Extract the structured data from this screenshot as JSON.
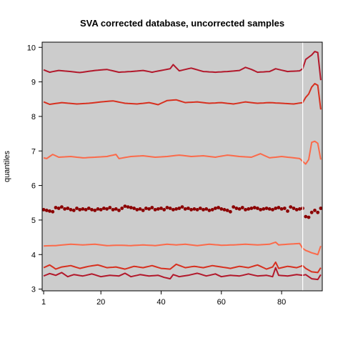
{
  "chart_data": {
    "type": "line",
    "title": "SVA corrected database, uncorrected samples",
    "xlabel": "",
    "ylabel": "quantiles",
    "xlim": [
      0.5,
      93.5
    ],
    "ylim": [
      2.95,
      10.15
    ],
    "x_ticks": [
      1,
      20,
      40,
      60,
      80
    ],
    "y_ticks": [
      3,
      4,
      5,
      6,
      7,
      8,
      9,
      10
    ],
    "background_color": "#cccccc",
    "grid": false,
    "divider_x": 87,
    "n_samples": 93,
    "series": [
      {
        "color": "#b2182b",
        "style": "line",
        "anchors": [
          [
            1,
            9.35
          ],
          [
            3,
            9.28
          ],
          [
            6,
            9.33
          ],
          [
            10,
            9.3
          ],
          [
            13,
            9.27
          ],
          [
            18,
            9.33
          ],
          [
            22,
            9.36
          ],
          [
            26,
            9.28
          ],
          [
            30,
            9.3
          ],
          [
            34,
            9.33
          ],
          [
            37,
            9.28
          ],
          [
            40,
            9.33
          ],
          [
            43,
            9.38
          ],
          [
            44,
            9.5
          ],
          [
            46,
            9.32
          ],
          [
            50,
            9.4
          ],
          [
            54,
            9.3
          ],
          [
            58,
            9.28
          ],
          [
            62,
            9.3
          ],
          [
            66,
            9.33
          ],
          [
            68,
            9.42
          ],
          [
            70,
            9.36
          ],
          [
            72,
            9.28
          ],
          [
            76,
            9.3
          ],
          [
            78,
            9.38
          ],
          [
            82,
            9.3
          ],
          [
            86,
            9.32
          ],
          [
            87,
            9.38
          ],
          [
            88,
            9.65
          ],
          [
            90,
            9.78
          ],
          [
            91,
            9.88
          ],
          [
            92,
            9.85
          ],
          [
            93,
            9.05
          ]
        ]
      },
      {
        "color": "#d7301f",
        "style": "line",
        "anchors": [
          [
            1,
            8.42
          ],
          [
            3,
            8.35
          ],
          [
            7,
            8.4
          ],
          [
            12,
            8.36
          ],
          [
            16,
            8.38
          ],
          [
            20,
            8.42
          ],
          [
            24,
            8.45
          ],
          [
            28,
            8.38
          ],
          [
            32,
            8.36
          ],
          [
            36,
            8.4
          ],
          [
            39,
            8.34
          ],
          [
            42,
            8.46
          ],
          [
            45,
            8.48
          ],
          [
            48,
            8.4
          ],
          [
            52,
            8.42
          ],
          [
            56,
            8.38
          ],
          [
            60,
            8.4
          ],
          [
            64,
            8.36
          ],
          [
            68,
            8.42
          ],
          [
            72,
            8.38
          ],
          [
            76,
            8.4
          ],
          [
            80,
            8.38
          ],
          [
            84,
            8.36
          ],
          [
            87,
            8.4
          ],
          [
            88,
            8.55
          ],
          [
            89,
            8.65
          ],
          [
            90,
            8.85
          ],
          [
            91,
            8.95
          ],
          [
            92,
            8.9
          ],
          [
            93,
            8.2
          ]
        ]
      },
      {
        "color": "#fb6a4a",
        "style": "line",
        "anchors": [
          [
            1,
            6.8
          ],
          [
            2,
            6.78
          ],
          [
            4,
            6.9
          ],
          [
            6,
            6.82
          ],
          [
            10,
            6.84
          ],
          [
            14,
            6.8
          ],
          [
            18,
            6.82
          ],
          [
            22,
            6.84
          ],
          [
            25,
            6.9
          ],
          [
            26,
            6.78
          ],
          [
            30,
            6.84
          ],
          [
            34,
            6.86
          ],
          [
            38,
            6.82
          ],
          [
            42,
            6.84
          ],
          [
            46,
            6.88
          ],
          [
            50,
            6.84
          ],
          [
            54,
            6.86
          ],
          [
            58,
            6.82
          ],
          [
            62,
            6.88
          ],
          [
            66,
            6.84
          ],
          [
            70,
            6.82
          ],
          [
            73,
            6.92
          ],
          [
            76,
            6.8
          ],
          [
            80,
            6.84
          ],
          [
            84,
            6.8
          ],
          [
            86,
            6.78
          ],
          [
            87,
            6.7
          ],
          [
            88,
            6.62
          ],
          [
            89,
            6.75
          ],
          [
            90,
            7.25
          ],
          [
            91,
            7.28
          ],
          [
            92,
            7.22
          ],
          [
            93,
            6.75
          ]
        ]
      },
      {
        "color": "#8b0000",
        "style": "points",
        "anchors": [
          [
            1,
            5.3
          ],
          [
            2,
            5.28
          ],
          [
            3,
            5.26
          ],
          [
            4,
            5.24
          ],
          [
            5,
            5.36
          ],
          [
            6,
            5.34
          ],
          [
            7,
            5.38
          ],
          [
            8,
            5.32
          ],
          [
            9,
            5.34
          ],
          [
            10,
            5.3
          ],
          [
            11,
            5.28
          ],
          [
            12,
            5.34
          ],
          [
            13,
            5.3
          ],
          [
            14,
            5.32
          ],
          [
            15,
            5.3
          ],
          [
            16,
            5.34
          ],
          [
            17,
            5.3
          ],
          [
            18,
            5.28
          ],
          [
            19,
            5.32
          ],
          [
            20,
            5.3
          ],
          [
            21,
            5.34
          ],
          [
            22,
            5.32
          ],
          [
            23,
            5.36
          ],
          [
            24,
            5.3
          ],
          [
            25,
            5.32
          ],
          [
            26,
            5.28
          ],
          [
            27,
            5.34
          ],
          [
            28,
            5.4
          ],
          [
            29,
            5.38
          ],
          [
            30,
            5.36
          ],
          [
            31,
            5.34
          ],
          [
            32,
            5.3
          ],
          [
            33,
            5.32
          ],
          [
            34,
            5.28
          ],
          [
            35,
            5.34
          ],
          [
            36,
            5.32
          ],
          [
            37,
            5.36
          ],
          [
            38,
            5.3
          ],
          [
            39,
            5.32
          ],
          [
            40,
            5.34
          ],
          [
            41,
            5.3
          ],
          [
            42,
            5.36
          ],
          [
            43,
            5.34
          ],
          [
            44,
            5.3
          ],
          [
            45,
            5.32
          ],
          [
            46,
            5.34
          ],
          [
            47,
            5.38
          ],
          [
            48,
            5.32
          ],
          [
            49,
            5.34
          ],
          [
            50,
            5.3
          ],
          [
            51,
            5.32
          ],
          [
            52,
            5.3
          ],
          [
            53,
            5.34
          ],
          [
            54,
            5.3
          ],
          [
            55,
            5.32
          ],
          [
            56,
            5.28
          ],
          [
            57,
            5.3
          ],
          [
            58,
            5.34
          ],
          [
            59,
            5.36
          ],
          [
            60,
            5.32
          ],
          [
            61,
            5.3
          ],
          [
            62,
            5.28
          ],
          [
            63,
            5.24
          ],
          [
            64,
            5.38
          ],
          [
            65,
            5.34
          ],
          [
            66,
            5.32
          ],
          [
            67,
            5.36
          ],
          [
            68,
            5.3
          ],
          [
            69,
            5.32
          ],
          [
            70,
            5.34
          ],
          [
            71,
            5.36
          ],
          [
            72,
            5.34
          ],
          [
            73,
            5.3
          ],
          [
            74,
            5.32
          ],
          [
            75,
            5.34
          ],
          [
            76,
            5.32
          ],
          [
            77,
            5.3
          ],
          [
            78,
            5.34
          ],
          [
            79,
            5.36
          ],
          [
            80,
            5.32
          ],
          [
            81,
            5.34
          ],
          [
            82,
            5.26
          ],
          [
            83,
            5.38
          ],
          [
            84,
            5.34
          ],
          [
            85,
            5.3
          ],
          [
            86,
            5.32
          ],
          [
            87,
            5.34
          ],
          [
            88,
            5.1
          ],
          [
            89,
            5.08
          ],
          [
            90,
            5.22
          ],
          [
            91,
            5.28
          ],
          [
            92,
            5.22
          ],
          [
            93,
            5.34
          ]
        ]
      },
      {
        "color": "#fb6a4a",
        "style": "line",
        "anchors": [
          [
            1,
            4.25
          ],
          [
            5,
            4.26
          ],
          [
            10,
            4.3
          ],
          [
            14,
            4.28
          ],
          [
            18,
            4.3
          ],
          [
            22,
            4.26
          ],
          [
            26,
            4.27
          ],
          [
            30,
            4.26
          ],
          [
            34,
            4.28
          ],
          [
            38,
            4.26
          ],
          [
            42,
            4.3
          ],
          [
            45,
            4.28
          ],
          [
            48,
            4.3
          ],
          [
            52,
            4.26
          ],
          [
            56,
            4.3
          ],
          [
            60,
            4.27
          ],
          [
            64,
            4.28
          ],
          [
            68,
            4.3
          ],
          [
            72,
            4.28
          ],
          [
            76,
            4.3
          ],
          [
            78,
            4.36
          ],
          [
            79,
            4.28
          ],
          [
            82,
            4.3
          ],
          [
            86,
            4.32
          ],
          [
            87,
            4.18
          ],
          [
            88,
            4.12
          ],
          [
            90,
            4.05
          ],
          [
            92,
            4.0
          ],
          [
            93,
            4.25
          ]
        ]
      },
      {
        "color": "#d7301f",
        "style": "line",
        "anchors": [
          [
            1,
            3.62
          ],
          [
            3,
            3.7
          ],
          [
            5,
            3.58
          ],
          [
            7,
            3.64
          ],
          [
            10,
            3.68
          ],
          [
            13,
            3.6
          ],
          [
            16,
            3.66
          ],
          [
            19,
            3.7
          ],
          [
            22,
            3.62
          ],
          [
            25,
            3.64
          ],
          [
            28,
            3.58
          ],
          [
            31,
            3.66
          ],
          [
            34,
            3.62
          ],
          [
            37,
            3.68
          ],
          [
            40,
            3.6
          ],
          [
            43,
            3.58
          ],
          [
            45,
            3.72
          ],
          [
            48,
            3.62
          ],
          [
            51,
            3.66
          ],
          [
            54,
            3.62
          ],
          [
            57,
            3.68
          ],
          [
            60,
            3.64
          ],
          [
            63,
            3.6
          ],
          [
            66,
            3.66
          ],
          [
            69,
            3.62
          ],
          [
            72,
            3.7
          ],
          [
            75,
            3.58
          ],
          [
            77,
            3.64
          ],
          [
            78,
            3.78
          ],
          [
            79,
            3.6
          ],
          [
            82,
            3.66
          ],
          [
            85,
            3.62
          ],
          [
            87,
            3.68
          ],
          [
            88,
            3.6
          ],
          [
            90,
            3.5
          ],
          [
            92,
            3.48
          ],
          [
            93,
            3.62
          ]
        ]
      },
      {
        "color": "#b2182b",
        "style": "line",
        "anchors": [
          [
            1,
            3.38
          ],
          [
            3,
            3.45
          ],
          [
            5,
            3.4
          ],
          [
            7,
            3.48
          ],
          [
            9,
            3.36
          ],
          [
            11,
            3.42
          ],
          [
            14,
            3.38
          ],
          [
            17,
            3.44
          ],
          [
            20,
            3.36
          ],
          [
            23,
            3.4
          ],
          [
            26,
            3.38
          ],
          [
            28,
            3.46
          ],
          [
            30,
            3.36
          ],
          [
            33,
            3.42
          ],
          [
            36,
            3.38
          ],
          [
            39,
            3.4
          ],
          [
            41,
            3.34
          ],
          [
            43,
            3.3
          ],
          [
            44,
            3.42
          ],
          [
            46,
            3.36
          ],
          [
            49,
            3.4
          ],
          [
            52,
            3.46
          ],
          [
            55,
            3.38
          ],
          [
            58,
            3.44
          ],
          [
            60,
            3.36
          ],
          [
            63,
            3.4
          ],
          [
            66,
            3.38
          ],
          [
            69,
            3.44
          ],
          [
            72,
            3.38
          ],
          [
            75,
            3.4
          ],
          [
            77,
            3.36
          ],
          [
            78,
            3.62
          ],
          [
            79,
            3.4
          ],
          [
            82,
            3.38
          ],
          [
            85,
            3.42
          ],
          [
            87,
            3.4
          ],
          [
            88,
            3.42
          ],
          [
            90,
            3.3
          ],
          [
            92,
            3.28
          ],
          [
            93,
            3.42
          ]
        ]
      }
    ]
  }
}
